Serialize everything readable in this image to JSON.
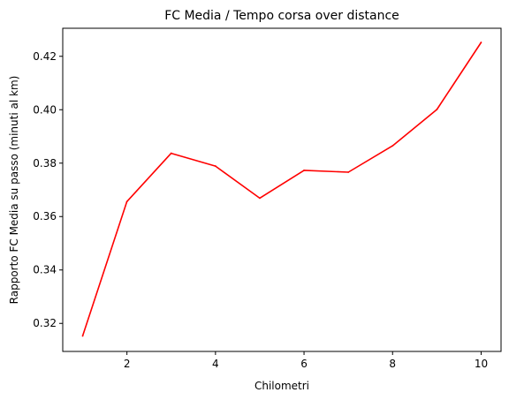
{
  "chart_data": {
    "type": "line",
    "title": "FC Media / Tempo corsa over distance",
    "xlabel": "Chilometri",
    "ylabel": "Rapporto FC Media su passo (minuti al km)",
    "xlim": [
      0.55,
      10.45
    ],
    "ylim": [
      0.3095,
      0.4305
    ],
    "xticks": [
      2,
      4,
      6,
      8,
      10
    ],
    "yticks": [
      0.32,
      0.34,
      0.36,
      0.38,
      0.4,
      0.42
    ],
    "xtick_labels": [
      "2",
      "4",
      "6",
      "8",
      "10"
    ],
    "ytick_labels": [
      "0.32",
      "0.34",
      "0.36",
      "0.38",
      "0.40",
      "0.42"
    ],
    "grid": false,
    "series": [
      {
        "color": "#ff0000",
        "x": [
          1,
          2,
          3,
          4,
          5,
          6,
          7,
          8,
          9,
          10
        ],
        "y": [
          0.3153,
          0.3656,
          0.3837,
          0.3789,
          0.3669,
          0.3773,
          0.3766,
          0.3865,
          0.4001,
          0.4252
        ]
      }
    ]
  }
}
